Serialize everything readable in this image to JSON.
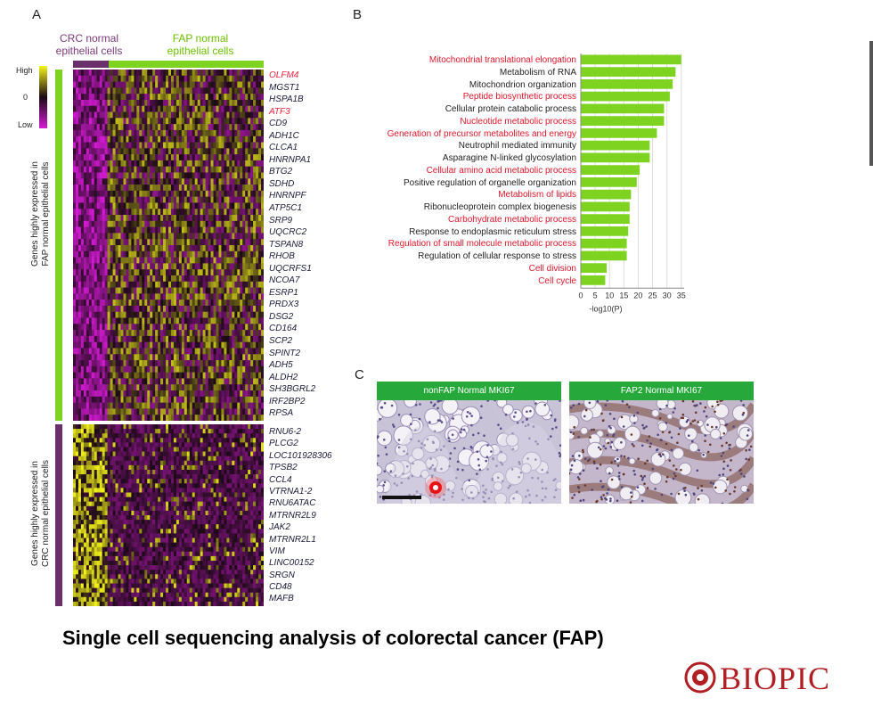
{
  "panels": {
    "a": "A",
    "b": "B",
    "c": "C"
  },
  "heatmap": {
    "crc_header": [
      "CRC normal",
      "epithelial cells"
    ],
    "fap_header": [
      "FAP normal",
      "epithelial cells"
    ],
    "legend": {
      "high": "High",
      "mid": "0",
      "low": "Low"
    },
    "left_label_fap": [
      "Genes highly expressed in",
      "FAP normal epithelial cells"
    ],
    "left_label_crc": [
      "Genes highly expressed in",
      "CRC normal epithelial cells"
    ],
    "genes_fap": [
      {
        "name": "OLFM4",
        "color": "red"
      },
      {
        "name": "MGST1",
        "color": "dark"
      },
      {
        "name": "HSPA1B",
        "color": "dark"
      },
      {
        "name": "ATF3",
        "color": "red"
      },
      {
        "name": "CD9",
        "color": "dark"
      },
      {
        "name": "ADH1C",
        "color": "dark"
      },
      {
        "name": "CLCA1",
        "color": "dark"
      },
      {
        "name": "HNRNPA1",
        "color": "dark"
      },
      {
        "name": "BTG2",
        "color": "dark"
      },
      {
        "name": "SDHD",
        "color": "dark"
      },
      {
        "name": "HNRNPF",
        "color": "dark"
      },
      {
        "name": "ATP5C1",
        "color": "dark"
      },
      {
        "name": "SRP9",
        "color": "dark"
      },
      {
        "name": "UQCRC2",
        "color": "dark"
      },
      {
        "name": "TSPAN8",
        "color": "dark"
      },
      {
        "name": "RHOB",
        "color": "dark"
      },
      {
        "name": "UQCRFS1",
        "color": "dark"
      },
      {
        "name": "NCOA7",
        "color": "dark"
      },
      {
        "name": "ESRP1",
        "color": "dark"
      },
      {
        "name": "PRDX3",
        "color": "dark"
      },
      {
        "name": "DSG2",
        "color": "dark"
      },
      {
        "name": "CD164",
        "color": "dark"
      },
      {
        "name": "SCP2",
        "color": "dark"
      },
      {
        "name": "SPINT2",
        "color": "dark"
      },
      {
        "name": "ADH5",
        "color": "dark"
      },
      {
        "name": "ALDH2",
        "color": "dark"
      },
      {
        "name": "SH3BGRL2",
        "color": "dark"
      },
      {
        "name": "IRF2BP2",
        "color": "dark"
      },
      {
        "name": "RPSA",
        "color": "dark"
      }
    ],
    "genes_crc": [
      "RNU6-2",
      "PLCG2",
      "LOC101928306",
      "TPSB2",
      "CCL4",
      "VTRNA1-2",
      "RNU6ATAC",
      "MTRNR2L9",
      "JAK2",
      "MTRNR2L1",
      "VIM",
      "LINC00152",
      "SRGN",
      "CD48",
      "MAFB"
    ],
    "colors": {
      "high": "#f4f41a",
      "mid": "#1a0a14",
      "low": "#d41ad4",
      "fap_bar": "#7ed321",
      "crc_bar": "#6b2f6b"
    }
  },
  "chart_data": {
    "type": "bar",
    "orientation": "horizontal",
    "categories": [
      "Mitochondrial translational elongation",
      "Metabolism of RNA",
      "Mitochondrion organization",
      "Peptide biosynthetic process",
      "Cellular protein catabolic process",
      "Nucleotide metabolic process",
      "Generation of precursor metabolites and energy",
      "Neutrophil mediated immunity",
      "Asparagine N-linked glycosylation",
      "Cellular amino acid metabolic process",
      "Positive regulation of organelle organization",
      "Metabolism of lipids",
      "Ribonucleoprotein complex biogenesis",
      "Carbohydrate metabolic process",
      "Response to endoplasmic reticulum stress",
      "Regulation of small molecule metabolic process",
      "Regulation of cellular response to stress",
      "Cell division",
      "Cell cycle"
    ],
    "values": [
      35,
      33,
      32,
      31,
      29,
      29,
      26.5,
      24,
      24,
      20.5,
      19.5,
      17.5,
      17,
      17,
      16.5,
      16,
      16,
      9,
      8.5
    ],
    "label_colors": [
      "red",
      "black",
      "black",
      "red",
      "black",
      "red",
      "red",
      "black",
      "black",
      "red",
      "black",
      "red",
      "black",
      "red",
      "black",
      "red",
      "black",
      "red",
      "red"
    ],
    "xlabel": "-log10(P)",
    "xticks": [
      0,
      5,
      10,
      15,
      20,
      25,
      30,
      35
    ],
    "xlim": [
      0,
      36
    ],
    "bar_color": "#7ed321",
    "grid": true
  },
  "micrographs": {
    "left_title": "nonFAP Normal MKI67",
    "right_title": "FAP2 Normal MKI67"
  },
  "caption": "Single cell sequencing analysis of colorectal cancer (FAP)",
  "logo": {
    "text": "BIOPIC",
    "color": "#b01f24"
  }
}
